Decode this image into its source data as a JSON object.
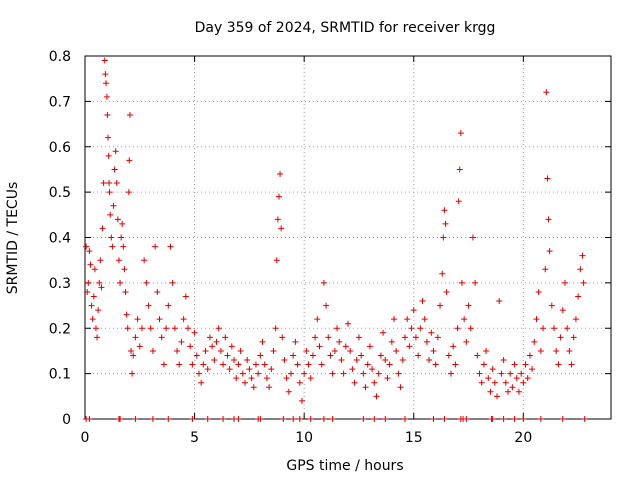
{
  "chart_data": {
    "type": "scatter",
    "title": "Day 359 of 2024, SRMTID for receiver krgg",
    "xlabel": "GPS time / hours",
    "ylabel": "SRMTID / TECUs",
    "xlim": [
      0,
      24
    ],
    "ylim": [
      0,
      0.8
    ],
    "xticks": [
      0,
      5,
      10,
      15,
      20
    ],
    "xtick_labels": [
      "0",
      "5",
      "10",
      "15",
      "20"
    ],
    "yticks": [
      0,
      0.1,
      0.2,
      0.3,
      0.4,
      0.5,
      0.6,
      0.7,
      0.8
    ],
    "ytick_labels": [
      "0",
      "0.1",
      "0.2",
      "0.3",
      "0.4",
      "0.5",
      "0.6",
      "0.7",
      "0.8"
    ],
    "grid": true,
    "marker": "+",
    "color": "#e00000",
    "series": [
      {
        "name": "SRMTID",
        "points": [
          [
            0.05,
            0.38
          ],
          [
            0.1,
            0.28
          ],
          [
            0.15,
            0.3
          ],
          [
            0.2,
            0.37
          ],
          [
            0.25,
            0.34
          ],
          [
            0.3,
            0.25
          ],
          [
            0.35,
            0.22
          ],
          [
            0.4,
            0.27
          ],
          [
            0.45,
            0.33
          ],
          [
            0.5,
            0.2
          ],
          [
            0.55,
            0.18
          ],
          [
            0.6,
            0.24
          ],
          [
            0.65,
            0.3
          ],
          [
            0.7,
            0.35
          ],
          [
            0.75,
            0.29
          ],
          [
            0.8,
            0.42
          ],
          [
            0.85,
            0.52
          ],
          [
            0.9,
            0.79
          ],
          [
            0.93,
            0.76
          ],
          [
            0.96,
            0.74
          ],
          [
            1.0,
            0.71
          ],
          [
            1.02,
            0.67
          ],
          [
            1.05,
            0.62
          ],
          [
            1.08,
            0.58
          ],
          [
            1.1,
            0.52
          ],
          [
            1.12,
            0.5
          ],
          [
            1.15,
            0.45
          ],
          [
            1.2,
            0.4
          ],
          [
            1.25,
            0.38
          ],
          [
            1.3,
            0.47
          ],
          [
            1.35,
            0.55
          ],
          [
            1.4,
            0.59
          ],
          [
            1.45,
            0.52
          ],
          [
            1.5,
            0.44
          ],
          [
            1.55,
            0.35
          ],
          [
            1.6,
            0.3
          ],
          [
            1.65,
            0.4
          ],
          [
            1.7,
            0.43
          ],
          [
            1.75,
            0.38
          ],
          [
            1.8,
            0.33
          ],
          [
            1.85,
            0.28
          ],
          [
            1.9,
            0.23
          ],
          [
            1.95,
            0.2
          ],
          [
            2.0,
            0.5
          ],
          [
            2.02,
            0.57
          ],
          [
            2.05,
            0.67
          ],
          [
            2.1,
            0.15
          ],
          [
            2.15,
            0.1
          ],
          [
            2.2,
            0.14
          ],
          [
            2.3,
            0.18
          ],
          [
            2.4,
            0.22
          ],
          [
            2.5,
            0.16
          ],
          [
            2.6,
            0.2
          ],
          [
            2.7,
            0.35
          ],
          [
            2.8,
            0.3
          ],
          [
            2.9,
            0.25
          ],
          [
            3.0,
            0.2
          ],
          [
            3.1,
            0.15
          ],
          [
            3.2,
            0.38
          ],
          [
            3.3,
            0.28
          ],
          [
            3.4,
            0.22
          ],
          [
            3.5,
            0.18
          ],
          [
            3.6,
            0.12
          ],
          [
            3.7,
            0.2
          ],
          [
            3.8,
            0.25
          ],
          [
            3.9,
            0.38
          ],
          [
            4.0,
            0.3
          ],
          [
            4.1,
            0.2
          ],
          [
            4.2,
            0.15
          ],
          [
            4.3,
            0.12
          ],
          [
            4.4,
            0.17
          ],
          [
            4.5,
            0.22
          ],
          [
            4.6,
            0.27
          ],
          [
            4.7,
            0.2
          ],
          [
            4.8,
            0.16
          ],
          [
            4.9,
            0.12
          ],
          [
            5.0,
            0.19
          ],
          [
            5.1,
            0.14
          ],
          [
            5.2,
            0.1
          ],
          [
            5.3,
            0.08
          ],
          [
            5.4,
            0.12
          ],
          [
            5.5,
            0.15
          ],
          [
            5.6,
            0.11
          ],
          [
            5.7,
            0.18
          ],
          [
            5.8,
            0.16
          ],
          [
            5.9,
            0.13
          ],
          [
            6.0,
            0.17
          ],
          [
            6.1,
            0.2
          ],
          [
            6.2,
            0.15
          ],
          [
            6.3,
            0.12
          ],
          [
            6.4,
            0.18
          ],
          [
            6.5,
            0.14
          ],
          [
            6.6,
            0.11
          ],
          [
            6.7,
            0.16
          ],
          [
            6.8,
            0.13
          ],
          [
            6.9,
            0.09
          ],
          [
            7.0,
            0.12
          ],
          [
            7.1,
            0.15
          ],
          [
            7.2,
            0.1
          ],
          [
            7.3,
            0.08
          ],
          [
            7.4,
            0.13
          ],
          [
            7.5,
            0.11
          ],
          [
            7.6,
            0.09
          ],
          [
            7.7,
            0.07
          ],
          [
            7.8,
            0.12
          ],
          [
            7.9,
            0.1
          ],
          [
            8.0,
            0.14
          ],
          [
            8.1,
            0.17
          ],
          [
            8.2,
            0.12
          ],
          [
            8.3,
            0.09
          ],
          [
            8.4,
            0.07
          ],
          [
            8.5,
            0.11
          ],
          [
            8.6,
            0.15
          ],
          [
            8.7,
            0.2
          ],
          [
            8.75,
            0.35
          ],
          [
            8.8,
            0.44
          ],
          [
            8.85,
            0.49
          ],
          [
            8.9,
            0.54
          ],
          [
            8.95,
            0.42
          ],
          [
            9.0,
            0.18
          ],
          [
            9.1,
            0.13
          ],
          [
            9.2,
            0.09
          ],
          [
            9.3,
            0.06
          ],
          [
            9.4,
            0.1
          ],
          [
            9.5,
            0.14
          ],
          [
            9.6,
            0.17
          ],
          [
            9.7,
            0.12
          ],
          [
            9.8,
            0.08
          ],
          [
            9.9,
            0.04
          ],
          [
            10.0,
            0.1
          ],
          [
            10.1,
            0.15
          ],
          [
            10.2,
            0.12
          ],
          [
            10.3,
            0.09
          ],
          [
            10.4,
            0.14
          ],
          [
            10.5,
            0.18
          ],
          [
            10.6,
            0.22
          ],
          [
            10.7,
            0.16
          ],
          [
            10.8,
            0.12
          ],
          [
            10.9,
            0.3
          ],
          [
            11.0,
            0.25
          ],
          [
            11.1,
            0.18
          ],
          [
            11.2,
            0.14
          ],
          [
            11.3,
            0.1
          ],
          [
            11.4,
            0.15
          ],
          [
            11.5,
            0.2
          ],
          [
            11.6,
            0.17
          ],
          [
            11.7,
            0.13
          ],
          [
            11.8,
            0.1
          ],
          [
            11.9,
            0.16
          ],
          [
            12.0,
            0.21
          ],
          [
            12.1,
            0.15
          ],
          [
            12.2,
            0.11
          ],
          [
            12.3,
            0.08
          ],
          [
            12.4,
            0.13
          ],
          [
            12.5,
            0.18
          ],
          [
            12.6,
            0.14
          ],
          [
            12.7,
            0.1
          ],
          [
            12.8,
            0.07
          ],
          [
            12.9,
            0.12
          ],
          [
            13.0,
            0.16
          ],
          [
            13.1,
            0.11
          ],
          [
            13.2,
            0.08
          ],
          [
            13.3,
            0.05
          ],
          [
            13.4,
            0.1
          ],
          [
            13.5,
            0.14
          ],
          [
            13.6,
            0.19
          ],
          [
            13.7,
            0.13
          ],
          [
            13.8,
            0.09
          ],
          [
            13.9,
            0.12
          ],
          [
            14.0,
            0.17
          ],
          [
            14.1,
            0.22
          ],
          [
            14.2,
            0.15
          ],
          [
            14.3,
            0.1
          ],
          [
            14.4,
            0.07
          ],
          [
            14.5,
            0.13
          ],
          [
            14.6,
            0.18
          ],
          [
            14.7,
            0.22
          ],
          [
            14.8,
            0.16
          ],
          [
            14.9,
            0.2
          ],
          [
            15.0,
            0.24
          ],
          [
            15.1,
            0.18
          ],
          [
            15.2,
            0.14
          ],
          [
            15.3,
            0.2
          ],
          [
            15.4,
            0.26
          ],
          [
            15.5,
            0.22
          ],
          [
            15.6,
            0.17
          ],
          [
            15.7,
            0.13
          ],
          [
            15.8,
            0.19
          ],
          [
            15.9,
            0.15
          ],
          [
            16.0,
            0.12
          ],
          [
            16.1,
            0.18
          ],
          [
            16.2,
            0.25
          ],
          [
            16.3,
            0.32
          ],
          [
            16.35,
            0.4
          ],
          [
            16.4,
            0.46
          ],
          [
            16.45,
            0.43
          ],
          [
            16.5,
            0.28
          ],
          [
            16.6,
            0.14
          ],
          [
            16.7,
            0.1
          ],
          [
            16.8,
            0.16
          ],
          [
            16.9,
            0.12
          ],
          [
            17.0,
            0.2
          ],
          [
            17.05,
            0.48
          ],
          [
            17.1,
            0.55
          ],
          [
            17.15,
            0.63
          ],
          [
            17.2,
            0.3
          ],
          [
            17.3,
            0.22
          ],
          [
            17.4,
            0.17
          ],
          [
            17.5,
            0.25
          ],
          [
            17.6,
            0.2
          ],
          [
            17.7,
            0.4
          ],
          [
            17.8,
            0.3
          ],
          [
            17.9,
            0.14
          ],
          [
            18.0,
            0.1
          ],
          [
            18.1,
            0.08
          ],
          [
            18.2,
            0.12
          ],
          [
            18.3,
            0.15
          ],
          [
            18.4,
            0.09
          ],
          [
            18.5,
            0.06
          ],
          [
            18.6,
            0.11
          ],
          [
            18.7,
            0.08
          ],
          [
            18.8,
            0.05
          ],
          [
            18.9,
            0.26
          ],
          [
            19.0,
            0.1
          ],
          [
            19.1,
            0.13
          ],
          [
            19.2,
            0.08
          ],
          [
            19.3,
            0.06
          ],
          [
            19.4,
            0.1
          ],
          [
            19.5,
            0.07
          ],
          [
            19.6,
            0.12
          ],
          [
            19.7,
            0.09
          ],
          [
            19.8,
            0.06
          ],
          [
            19.9,
            0.1
          ],
          [
            20.0,
            0.08
          ],
          [
            20.1,
            0.12
          ],
          [
            20.2,
            0.09
          ],
          [
            20.3,
            0.14
          ],
          [
            20.4,
            0.11
          ],
          [
            20.5,
            0.17
          ],
          [
            20.6,
            0.22
          ],
          [
            20.7,
            0.28
          ],
          [
            20.8,
            0.15
          ],
          [
            20.9,
            0.2
          ],
          [
            21.0,
            0.33
          ],
          [
            21.05,
            0.72
          ],
          [
            21.1,
            0.53
          ],
          [
            21.15,
            0.44
          ],
          [
            21.2,
            0.37
          ],
          [
            21.3,
            0.25
          ],
          [
            21.4,
            0.2
          ],
          [
            21.5,
            0.15
          ],
          [
            21.6,
            0.12
          ],
          [
            21.7,
            0.18
          ],
          [
            21.8,
            0.24
          ],
          [
            21.9,
            0.3
          ],
          [
            22.0,
            0.2
          ],
          [
            22.1,
            0.15
          ],
          [
            22.2,
            0.12
          ],
          [
            22.3,
            0.18
          ],
          [
            22.4,
            0.22
          ],
          [
            22.5,
            0.27
          ],
          [
            22.6,
            0.33
          ],
          [
            22.7,
            0.36
          ],
          [
            22.75,
            0.3
          ]
        ],
        "baseline_x": [
          0.05,
          0.2,
          1.55,
          1.6,
          2.3,
          3.1,
          3.8,
          4.9,
          5.6,
          6.3,
          6.8,
          7.0,
          7.9,
          8.0,
          9.05,
          9.5,
          9.8,
          10.3,
          10.9,
          11.3,
          12.7,
          13.2,
          13.7,
          14.6,
          15.9,
          16.4,
          17.15,
          17.25,
          17.4,
          18.55,
          18.6,
          19.1,
          19.6,
          20.0,
          20.8,
          21.8,
          22.8
        ]
      }
    ]
  }
}
